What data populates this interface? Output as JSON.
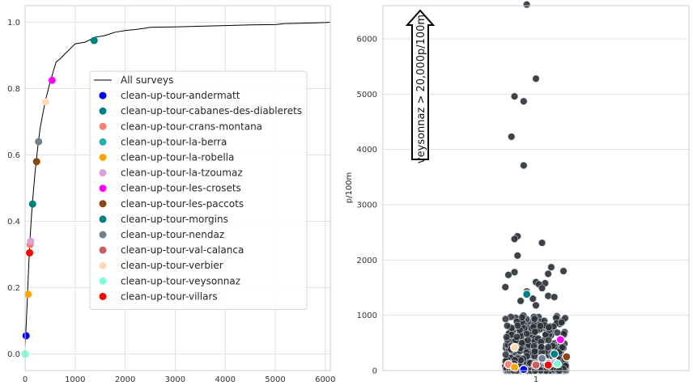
{
  "chart_data": [
    {
      "type": "line",
      "xlim": [
        0,
        6100
      ],
      "ylim": [
        -0.05,
        1.05
      ],
      "xticks": [
        "0",
        "1000",
        "2000",
        "3000",
        "4000",
        "5000",
        "6000"
      ],
      "yticks": [
        "0.0",
        "0.2",
        "0.4",
        "0.6",
        "0.8",
        "1.0"
      ],
      "grid": true,
      "legend_position": "center-right",
      "line_series": {
        "name": "All surveys",
        "color": "#000000",
        "x": [
          0,
          20,
          40,
          60,
          80,
          100,
          130,
          160,
          200,
          250,
          300,
          350,
          400,
          450,
          500,
          560,
          620,
          700,
          800,
          900,
          1000,
          1200,
          1400,
          1600,
          1800,
          2000,
          2200,
          2400,
          2500,
          3000,
          3500,
          4000,
          4500,
          5000,
          5200,
          5500,
          6000,
          6100
        ],
        "y": [
          0.02,
          0.08,
          0.15,
          0.22,
          0.29,
          0.35,
          0.42,
          0.48,
          0.55,
          0.62,
          0.68,
          0.72,
          0.76,
          0.79,
          0.82,
          0.85,
          0.88,
          0.89,
          0.905,
          0.92,
          0.935,
          0.94,
          0.955,
          0.96,
          0.97,
          0.975,
          0.978,
          0.982,
          0.985,
          0.986,
          0.988,
          0.99,
          0.992,
          0.993,
          0.996,
          0.997,
          0.999,
          1.0
        ]
      },
      "points": [
        {
          "name": "clean-up-tour-andermatt",
          "color": "#0000ee",
          "x": 20,
          "y": 0.055
        },
        {
          "name": "clean-up-tour-cabanes-des-diablerets",
          "color": "#008080",
          "x": 1380,
          "y": 0.945
        },
        {
          "name": "clean-up-tour-crans-montana",
          "color": "#fa8072",
          "x": 100,
          "y": 0.33
        },
        {
          "name": "clean-up-tour-la-berra",
          "color": "#20b2aa",
          "x": 0,
          "y": 0.0
        },
        {
          "name": "clean-up-tour-la-robella",
          "color": "#ffa500",
          "x": 60,
          "y": 0.18
        },
        {
          "name": "clean-up-tour-la-tzoumaz",
          "color": "#dda0dd",
          "x": 110,
          "y": 0.34
        },
        {
          "name": "clean-up-tour-les-crosets",
          "color": "#ff00ff",
          "x": 540,
          "y": 0.825
        },
        {
          "name": "clean-up-tour-les-paccots",
          "color": "#8b4513",
          "x": 230,
          "y": 0.58
        },
        {
          "name": "clean-up-tour-morgins",
          "color": "#008080",
          "x": 150,
          "y": 0.452
        },
        {
          "name": "clean-up-tour-nendaz",
          "color": "#708090",
          "x": 270,
          "y": 0.64
        },
        {
          "name": "clean-up-tour-val-calanca",
          "color": "#cd5c5c",
          "x": 90,
          "y": 0.305
        },
        {
          "name": "clean-up-tour-verbier",
          "color": "#ffdab9",
          "x": 410,
          "y": 0.76
        },
        {
          "name": "clean-up-tour-veysonnaz",
          "color": "#7fffd4",
          "x": 0,
          "y": 0.0
        },
        {
          "name": "clean-up-tour-villars",
          "color": "#ff0000",
          "x": 90,
          "y": 0.305
        }
      ]
    },
    {
      "type": "scatter",
      "ylabel": "p/100m",
      "xticks": [
        "1"
      ],
      "xlim": [
        0.5,
        1.5
      ],
      "ylim": [
        0,
        6600
      ],
      "yticks": [
        "0",
        "1000",
        "2000",
        "3000",
        "4000",
        "5000",
        "6000"
      ],
      "grid": true,
      "annotation": "veysonnaz > 20,000p/100m",
      "all_surveys_color": "#2a2e33",
      "outliers": [
        {
          "x": 0.97,
          "y": 6620
        },
        {
          "x": 1.0,
          "y": 5280
        },
        {
          "x": 0.93,
          "y": 4960
        },
        {
          "x": 0.96,
          "y": 4870
        },
        {
          "x": 0.92,
          "y": 4230
        },
        {
          "x": 0.96,
          "y": 3710
        },
        {
          "x": 0.94,
          "y": 2430
        },
        {
          "x": 0.93,
          "y": 2380
        },
        {
          "x": 1.02,
          "y": 2310
        },
        {
          "x": 0.94,
          "y": 2080
        },
        {
          "x": 1.05,
          "y": 1870
        },
        {
          "x": 1.09,
          "y": 1800
        },
        {
          "x": 0.93,
          "y": 1780
        },
        {
          "x": 1.04,
          "y": 1750
        },
        {
          "x": 0.91,
          "y": 1730
        },
        {
          "x": 1.0,
          "y": 1600
        },
        {
          "x": 1.03,
          "y": 1580
        },
        {
          "x": 1.01,
          "y": 1560
        },
        {
          "x": 0.9,
          "y": 1510
        },
        {
          "x": 1.02,
          "y": 1490
        },
        {
          "x": 0.97,
          "y": 1430
        },
        {
          "x": 1.04,
          "y": 1350
        },
        {
          "x": 0.99,
          "y": 1300
        },
        {
          "x": 1.06,
          "y": 1330
        },
        {
          "x": 0.95,
          "y": 1260
        },
        {
          "x": 1.0,
          "y": 1180
        }
      ],
      "highlighted": [
        {
          "name": "clean-up-tour-andermatt",
          "color": "#0000ee",
          "x": 0.96,
          "y": 20
        },
        {
          "name": "clean-up-tour-cabanes-des-diablerets",
          "color": "#008080",
          "x": 0.97,
          "y": 1380
        },
        {
          "name": "clean-up-tour-crans-montana",
          "color": "#fa8072",
          "x": 0.91,
          "y": 110
        },
        {
          "name": "clean-up-tour-la-berra",
          "color": "#20b2aa",
          "x": 1.04,
          "y": 130
        },
        {
          "name": "clean-up-tour-la-robella",
          "color": "#ffa500",
          "x": 0.93,
          "y": 60
        },
        {
          "name": "clean-up-tour-la-tzoumaz",
          "color": "#dda0dd",
          "x": 1.06,
          "y": 140
        },
        {
          "name": "clean-up-tour-les-crosets",
          "color": "#ff00ff",
          "x": 1.08,
          "y": 560
        },
        {
          "name": "clean-up-tour-les-paccots",
          "color": "#8b4513",
          "x": 1.1,
          "y": 250
        },
        {
          "name": "clean-up-tour-morgins",
          "color": "#008080",
          "x": 1.06,
          "y": 300
        },
        {
          "name": "clean-up-tour-nendaz",
          "color": "#708090",
          "x": 1.02,
          "y": 220
        },
        {
          "name": "clean-up-tour-val-calanca",
          "color": "#cd5c5c",
          "x": 1.0,
          "y": 100
        },
        {
          "name": "clean-up-tour-verbier",
          "color": "#ffdab9",
          "x": 0.93,
          "y": 420
        },
        {
          "name": "clean-up-tour-veysonnaz",
          "color": "#7fffd4",
          "x": 1.07,
          "y": 120
        },
        {
          "name": "clean-up-tour-villars",
          "color": "#ff0000",
          "x": 1.04,
          "y": 100
        }
      ]
    }
  ]
}
